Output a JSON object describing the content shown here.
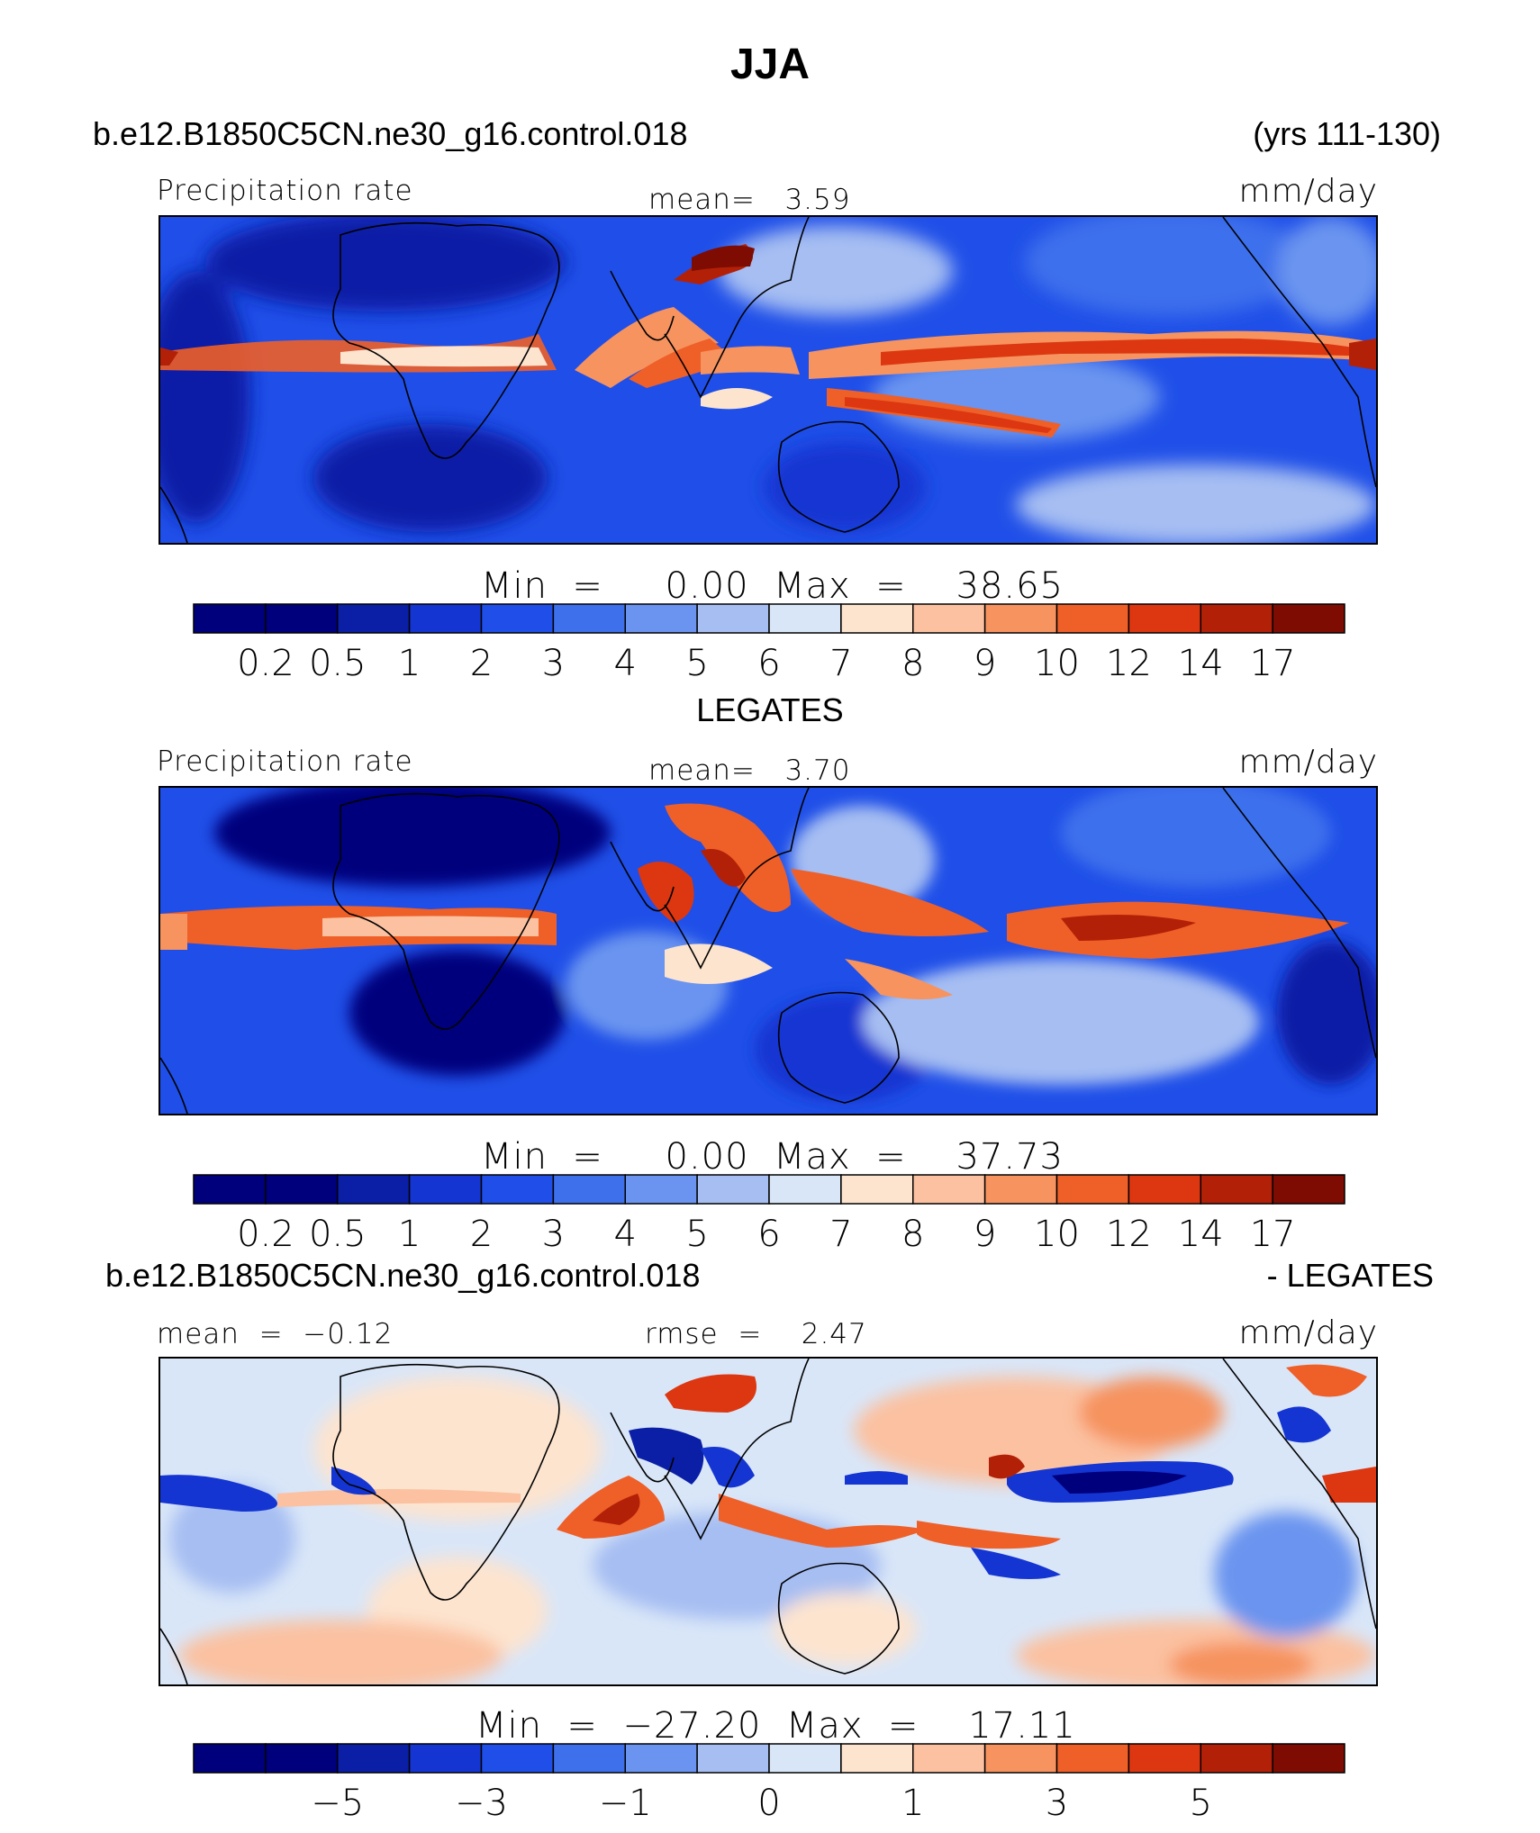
{
  "title": "JJA",
  "panel1": {
    "case": "b.e12.B1850C5CN.ne30_g16.control.018",
    "years": "(yrs 111-130)",
    "left": "Precipitation rate",
    "center": "mean=   3.59",
    "units": "mm/day",
    "minmax": "Min  =     0.00  Max  =    38.65"
  },
  "obs_title": "LEGATES",
  "panel2": {
    "left": "Precipitation rate",
    "center": "mean=   3.70",
    "units": "mm/day",
    "minmax": "Min  =     0.00  Max  =    37.73"
  },
  "diff_title": {
    "case": "b.e12.B1850C5CN.ne30_g16.control.018",
    "minus": "- LEGATES"
  },
  "panel3": {
    "left": "mean  =  −0.12",
    "center": "rmse  =    2.47",
    "units": "mm/day",
    "minmax": "Min  =  −27.20  Max  =    17.11"
  },
  "chart_data": [
    {
      "type": "heatmap",
      "title": "JJA",
      "subtitle": "b.e12.B1850C5CN.ne30_g16.control.018 (yrs 111-130)",
      "variable": "Precipitation rate",
      "units": "mm/day",
      "mean": 3.59,
      "min": 0.0,
      "max": 38.65,
      "contour_levels": [
        0.2,
        0.5,
        1,
        2,
        3,
        4,
        5,
        6,
        7,
        8,
        9,
        10,
        12,
        14,
        17
      ],
      "colorbar_labels": [
        "0.2",
        "0.5",
        "1",
        "2",
        "3",
        "4",
        "5",
        "6",
        "7",
        "8",
        "9",
        "10",
        "12",
        "14",
        "17"
      ],
      "colors": [
        "#00007d",
        "#0a1fa6",
        "#1435d2",
        "#1f4fe8",
        "#3e70ec",
        "#6a94ef",
        "#a6bef2",
        "#d9e6f8",
        "#fde4cf",
        "#fbc1a0",
        "#f6935f",
        "#ef5f28",
        "#dc3710",
        "#b32008",
        "#7e0c02"
      ]
    },
    {
      "type": "heatmap",
      "title": "LEGATES",
      "variable": "Precipitation rate",
      "units": "mm/day",
      "mean": 3.7,
      "min": 0.0,
      "max": 37.73,
      "contour_levels": [
        0.2,
        0.5,
        1,
        2,
        3,
        4,
        5,
        6,
        7,
        8,
        9,
        10,
        12,
        14,
        17
      ],
      "colorbar_labels": [
        "0.2",
        "0.5",
        "1",
        "2",
        "3",
        "4",
        "5",
        "6",
        "7",
        "8",
        "9",
        "10",
        "12",
        "14",
        "17"
      ],
      "colors": [
        "#00007d",
        "#0a1fa6",
        "#1435d2",
        "#1f4fe8",
        "#3e70ec",
        "#6a94ef",
        "#a6bef2",
        "#d9e6f8",
        "#fde4cf",
        "#fbc1a0",
        "#f6935f",
        "#ef5f28",
        "#dc3710",
        "#b32008",
        "#7e0c02"
      ]
    },
    {
      "type": "heatmap",
      "title": "b.e12.B1850C5CN.ne30_g16.control.018 - LEGATES",
      "units": "mm/day",
      "mean": -0.12,
      "rmse": 2.47,
      "min": -27.2,
      "max": 17.11,
      "colorbar_labels": [
        "−5",
        "−3",
        "−1",
        "0",
        "1",
        "3",
        "5"
      ],
      "colors": [
        "#00007d",
        "#0a1fa6",
        "#1435d2",
        "#1f4fe8",
        "#3e70ec",
        "#6a94ef",
        "#a6bef2",
        "#d9e6f8",
        "#fde4cf",
        "#fbc1a0",
        "#f6935f",
        "#ef5f28",
        "#dc3710",
        "#b32008",
        "#7e0c02"
      ]
    }
  ]
}
